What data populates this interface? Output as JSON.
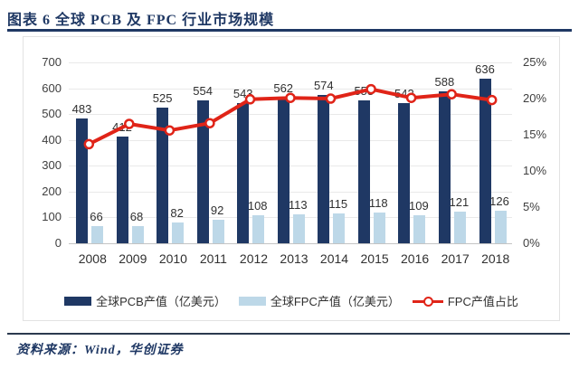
{
  "header": {
    "title": "图表 6  全球 PCB 及 FPC 行业市场规模"
  },
  "footer": {
    "source_label": "资料来源：Wind，华创证券"
  },
  "colors": {
    "navy": "#1F3864",
    "pcb_bar": "#1F3864",
    "fpc_bar": "#BDD8E8",
    "line_red": "#E02418",
    "grid": "#E9E9E9",
    "axis_text": "#3F3F3F",
    "panel_border": "#E2E2E2"
  },
  "chart_data": {
    "type": "bar+line combo",
    "categories": [
      "2008",
      "2009",
      "2010",
      "2011",
      "2012",
      "2013",
      "2014",
      "2015",
      "2016",
      "2017",
      "2018"
    ],
    "series": [
      {
        "name": "全球PCB产值（亿美元）",
        "type": "bar",
        "axis": "left",
        "values": [
          483,
          412,
          525,
          554,
          543,
          562,
          574,
          553,
          542,
          588,
          636
        ],
        "color": "#1F3864"
      },
      {
        "name": "全球FPC产值（亿美元）",
        "type": "bar",
        "axis": "left",
        "values": [
          66,
          68,
          82,
          92,
          108,
          113,
          115,
          118,
          109,
          121,
          126
        ],
        "color": "#BDD8E8"
      },
      {
        "name": "FPC产值占比",
        "type": "line",
        "axis": "right",
        "values_pct": [
          13.7,
          16.5,
          15.6,
          16.6,
          19.9,
          20.1,
          20.0,
          21.3,
          20.1,
          20.6,
          19.8
        ],
        "color": "#E02418"
      }
    ],
    "left_axis": {
      "min": 0,
      "max": 700,
      "step": 100,
      "ticks": [
        "700",
        "600",
        "500",
        "400",
        "300",
        "200",
        "100",
        "0"
      ]
    },
    "right_axis": {
      "min": 0,
      "max": 25,
      "step": 5,
      "ticks": [
        "25%",
        "20%",
        "15%",
        "10%",
        "5%",
        "0%"
      ]
    },
    "grid": "horizontal",
    "legend_position": "bottom",
    "legend": [
      "全球PCB产值（亿美元）",
      "全球FPC产值（亿美元）",
      "FPC产值占比"
    ]
  }
}
